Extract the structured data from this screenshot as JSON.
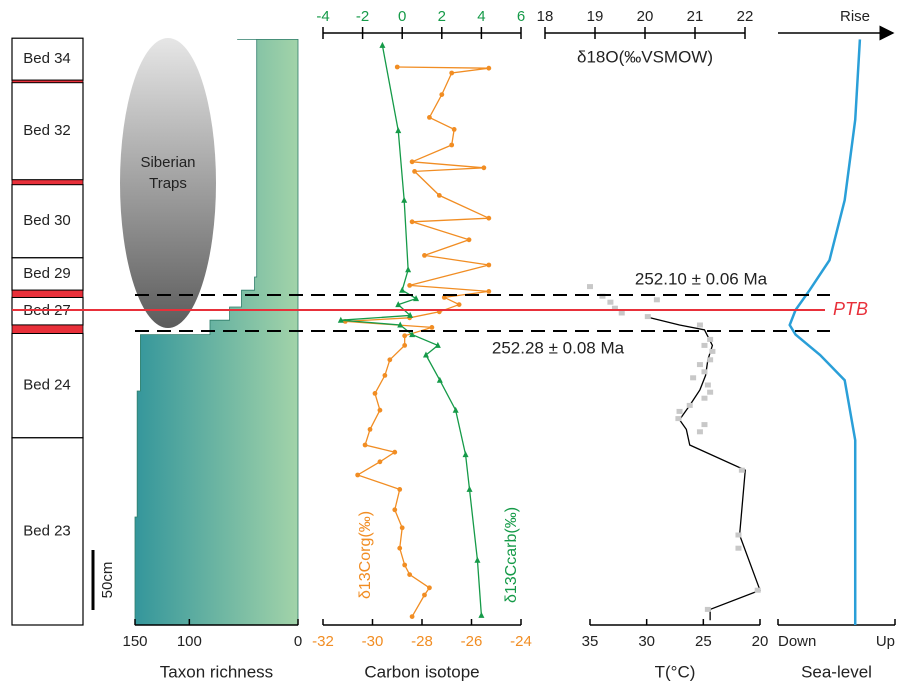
{
  "column": {
    "beds": [
      {
        "label": "Bed 34",
        "base": 454,
        "top": 489
      },
      {
        "label": "Bed 32",
        "base": 371,
        "top": 452
      },
      {
        "label": "Bed 30",
        "base": 306,
        "top": 367
      },
      {
        "label": "Bed 29",
        "base": 279,
        "top": 306
      },
      {
        "label": "Bed 27",
        "base": 250,
        "top": 273
      },
      {
        "label": "Bed 24",
        "base": 156,
        "top": 243
      },
      {
        "label": "Bed 23",
        "base": 0,
        "top": 156
      }
    ],
    "red_beds": [
      [
        452,
        454
      ],
      [
        367,
        371
      ],
      [
        273,
        279
      ],
      [
        243,
        250
      ]
    ],
    "scale_bar": {
      "label": "50cm",
      "length": 50
    }
  },
  "annotations": {
    "traps": [
      "Siberian",
      "Traps"
    ],
    "upper": {
      "height": 275,
      "label": "252.10 ± 0.06 Ma"
    },
    "ptb": {
      "height": 262.5,
      "label": "PTB"
    },
    "lower": {
      "height": 245,
      "label": "252.28 ± 0.08 Ma"
    }
  },
  "chart_data": [
    {
      "type": "step-area",
      "xlabel": "Taxon richness",
      "xlim": [
        150,
        0
      ],
      "xticks": [
        150,
        100,
        0
      ],
      "ylim": [
        0,
        490
      ],
      "color": "#5db39a",
      "heights": [
        0,
        90,
        190,
        195,
        240,
        242,
        254,
        265,
        279,
        290,
        396,
        483,
        488
      ],
      "values": [
        150,
        148,
        148,
        145,
        145,
        81,
        63,
        52,
        40,
        38,
        38,
        38,
        56
      ]
    },
    {
      "type": "profile",
      "xlabel": "Carbon isotope",
      "xlim": [
        -32,
        -24
      ],
      "xticks": [
        -32,
        -30,
        -28,
        -26,
        -24
      ],
      "x2lim": [
        -4,
        6
      ],
      "x2ticks": [
        -4,
        -2,
        0,
        2,
        4,
        6
      ],
      "ylim": [
        0,
        490
      ],
      "series": [
        {
          "name": "δ13Corg(‰)",
          "color": "#f18d23",
          "marker": "circle",
          "heights": [
            7,
            25,
            31,
            42,
            50,
            64,
            81,
            96,
            113,
            125,
            136,
            144,
            150,
            163,
            179,
            193,
            208,
            221,
            233,
            241,
            248,
            253,
            256,
            261,
            267,
            273,
            278,
            283,
            300,
            308,
            321,
            336,
            339,
            358,
            378,
            381,
            386,
            400,
            413,
            423,
            442,
            460,
            464,
            465
          ],
          "values": [
            -28.4,
            -27.9,
            -27.7,
            -28.5,
            -28.7,
            -28.9,
            -28.8,
            -29.1,
            -28.9,
            -30.6,
            -29.7,
            -29.1,
            -30.3,
            -30.1,
            -29.7,
            -29.9,
            -29.5,
            -29.3,
            -28.7,
            -28.7,
            -27.6,
            -31.1,
            -28.5,
            -27.3,
            -26.5,
            -27.1,
            -25.3,
            -28.5,
            -25.3,
            -27.9,
            -26.1,
            -28.4,
            -25.3,
            -27.3,
            -28.3,
            -25.5,
            -28.4,
            -26.8,
            -26.7,
            -27.7,
            -27.2,
            -26.8,
            -25.3,
            -29.0
          ]
        },
        {
          "name": "δ13Ccarb(‰)",
          "color": "#159a48",
          "marker": "triangle",
          "axis": "x2",
          "heights": [
            8,
            54,
            113,
            142,
            179,
            204,
            225,
            233,
            242,
            250,
            254,
            258,
            267,
            272,
            279,
            296,
            354,
            412,
            483
          ],
          "values": [
            4.0,
            3.8,
            3.4,
            3.2,
            2.7,
            1.9,
            1.2,
            1.8,
            0.5,
            -0.1,
            -3.1,
            0.4,
            -0.2,
            0.7,
            0.0,
            0.3,
            0.1,
            -0.2,
            -1.0
          ]
        }
      ]
    },
    {
      "type": "profile",
      "xlabel": "T(°C)",
      "xlim": [
        35,
        20
      ],
      "xticks": [
        35,
        30,
        25,
        20
      ],
      "x2label": "δ18O(‰VSMOW)",
      "x2lim": [
        18,
        22
      ],
      "x2ticks": [
        18,
        19,
        20,
        21,
        22
      ],
      "ylim": [
        0,
        490
      ],
      "series": [
        {
          "color": "#000000",
          "marker": "none",
          "heights": [
            4,
            13,
            29,
            75,
            129,
            150,
            163,
            171,
            183,
            196,
            208,
            221,
            233,
            246,
            250,
            256
          ],
          "values": [
            24.4,
            24.4,
            20.0,
            21.8,
            21.3,
            26.2,
            26.5,
            27.1,
            26.2,
            25.3,
            24.8,
            24.6,
            24.2,
            24.9,
            27.1,
            29.7
          ]
        },
        {
          "color": "#c8c8c8",
          "marker": "square",
          "line": false,
          "heights": [
            13,
            29,
            64,
            75,
            129,
            161,
            167,
            172,
            178,
            183,
            189,
            194,
            200,
            206,
            211,
            217,
            221,
            228,
            233,
            238,
            250,
            257,
            260,
            264,
            269,
            271,
            274,
            282
          ],
          "values": [
            24.6,
            20.2,
            21.9,
            21.9,
            21.6,
            25.3,
            24.9,
            27.2,
            27.1,
            26.2,
            24.9,
            24.4,
            24.6,
            25.9,
            24.9,
            25.3,
            24.4,
            24.2,
            24.9,
            24.4,
            25.3,
            29.9,
            32.2,
            32.8,
            33.2,
            29.1,
            33.9,
            35.0
          ]
        }
      ]
    },
    {
      "type": "profile",
      "xlabel": "Sea-level",
      "xlim": [
        0,
        1
      ],
      "xticks": [
        {
          "value": 0,
          "label": "Down"
        },
        {
          "value": 1,
          "label": "Up"
        }
      ],
      "top_label": "Rise",
      "ylim": [
        0,
        490
      ],
      "series": [
        {
          "color": "#2a9fd8",
          "marker": "none",
          "heights": [
            0,
            154,
            204,
            225,
            242,
            250,
            262.5,
            279,
            304,
            354,
            421,
            488
          ],
          "values": [
            0.66,
            0.66,
            0.57,
            0.36,
            0.15,
            0.1,
            0.15,
            0.27,
            0.44,
            0.57,
            0.66,
            0.7
          ]
        }
      ]
    }
  ]
}
